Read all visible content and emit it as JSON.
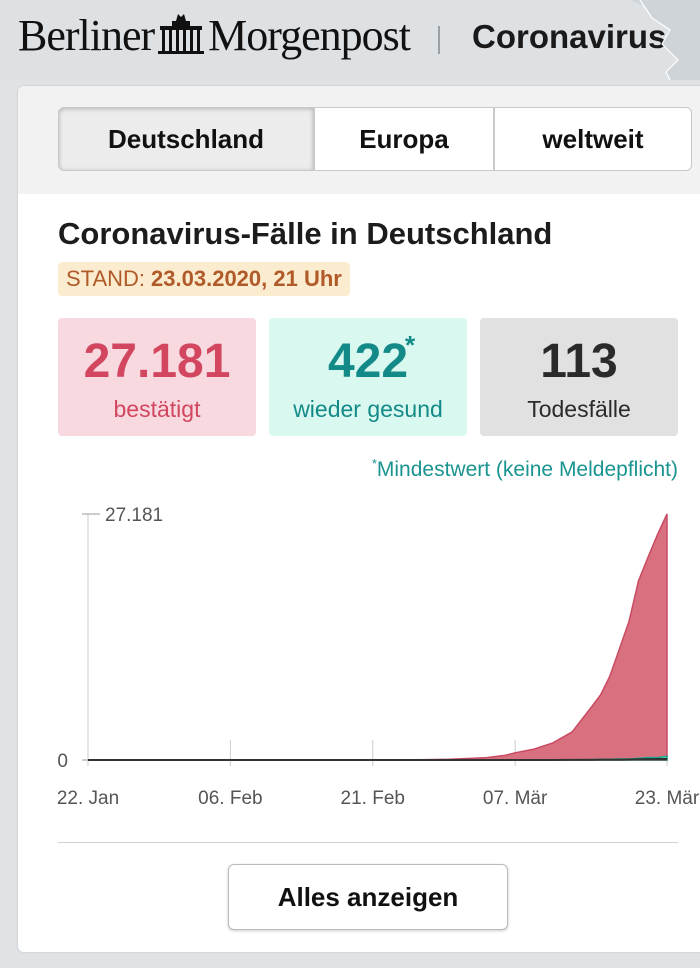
{
  "header": {
    "brand_left": "Berliner",
    "brand_right": "Morgenpost",
    "section_title": "Coronavirus-M"
  },
  "tabs": [
    {
      "label": "Deutschland",
      "active": true
    },
    {
      "label": "Europa",
      "active": false
    },
    {
      "label": "weltweit",
      "active": false
    }
  ],
  "card": {
    "title": "Coronavirus-Fälle in Deutschland",
    "stand_label": "STAND:",
    "stand_value": "23.03.2020, 21 Uhr"
  },
  "stats": {
    "confirmed": {
      "value": "27.181",
      "label": "bestätigt",
      "color": "#d2475f"
    },
    "recovered": {
      "value": "422",
      "star": "*",
      "label": "wieder gesund",
      "color": "#148a88"
    },
    "deaths": {
      "value": "113",
      "label": "Todesfälle",
      "color": "#2a2a2a"
    }
  },
  "footnote": {
    "star": "*",
    "text": "Mindestwert (keine Meldepflicht)"
  },
  "button": {
    "label": "Alles anzeigen"
  },
  "chart_data": {
    "type": "area",
    "x": [
      "2020-01-22",
      "2020-01-27",
      "2020-02-01",
      "2020-02-06",
      "2020-02-11",
      "2020-02-16",
      "2020-02-21",
      "2020-02-26",
      "2020-02-29",
      "2020-03-02",
      "2020-03-04",
      "2020-03-06",
      "2020-03-07",
      "2020-03-09",
      "2020-03-11",
      "2020-03-13",
      "2020-03-15",
      "2020-03-16",
      "2020-03-17",
      "2020-03-18",
      "2020-03-19",
      "2020-03-20",
      "2020-03-21",
      "2020-03-22",
      "2020-03-23"
    ],
    "series": [
      {
        "name": "bestätigt",
        "color": "#d9707f",
        "values": [
          0,
          0,
          10,
          12,
          16,
          16,
          16,
          21,
          79,
          165,
          262,
          534,
          800,
          1200,
          1900,
          3100,
          5800,
          7200,
          9300,
          12300,
          15300,
          19800,
          22400,
          24900,
          27181
        ]
      },
      {
        "name": "wieder gesund",
        "color": "#7fe3c6",
        "values": [
          0,
          0,
          0,
          0,
          0,
          0,
          14,
          16,
          16,
          16,
          16,
          16,
          18,
          18,
          18,
          18,
          46,
          67,
          72,
          105,
          113,
          180,
          266,
          266,
          422
        ]
      },
      {
        "name": "Todesfälle",
        "color": "#222222",
        "values": [
          0,
          0,
          0,
          0,
          0,
          0,
          0,
          0,
          0,
          0,
          0,
          0,
          0,
          2,
          3,
          7,
          13,
          17,
          24,
          28,
          44,
          67,
          84,
          94,
          113
        ]
      }
    ],
    "y_ticks": [
      {
        "value": 0,
        "label": "0"
      },
      {
        "value": 27181,
        "label": "27.181"
      }
    ],
    "x_ticks": [
      {
        "date": "2020-01-22",
        "label": "22. Jan"
      },
      {
        "date": "2020-02-06",
        "label": "06. Feb"
      },
      {
        "date": "2020-02-21",
        "label": "21. Feb"
      },
      {
        "date": "2020-03-07",
        "label": "07. Mär"
      },
      {
        "date": "2020-03-23",
        "label": "23. Mär"
      }
    ],
    "ylim": [
      0,
      27181
    ],
    "xlim": [
      "2020-01-22",
      "2020-03-23"
    ],
    "grid": "vertical"
  }
}
